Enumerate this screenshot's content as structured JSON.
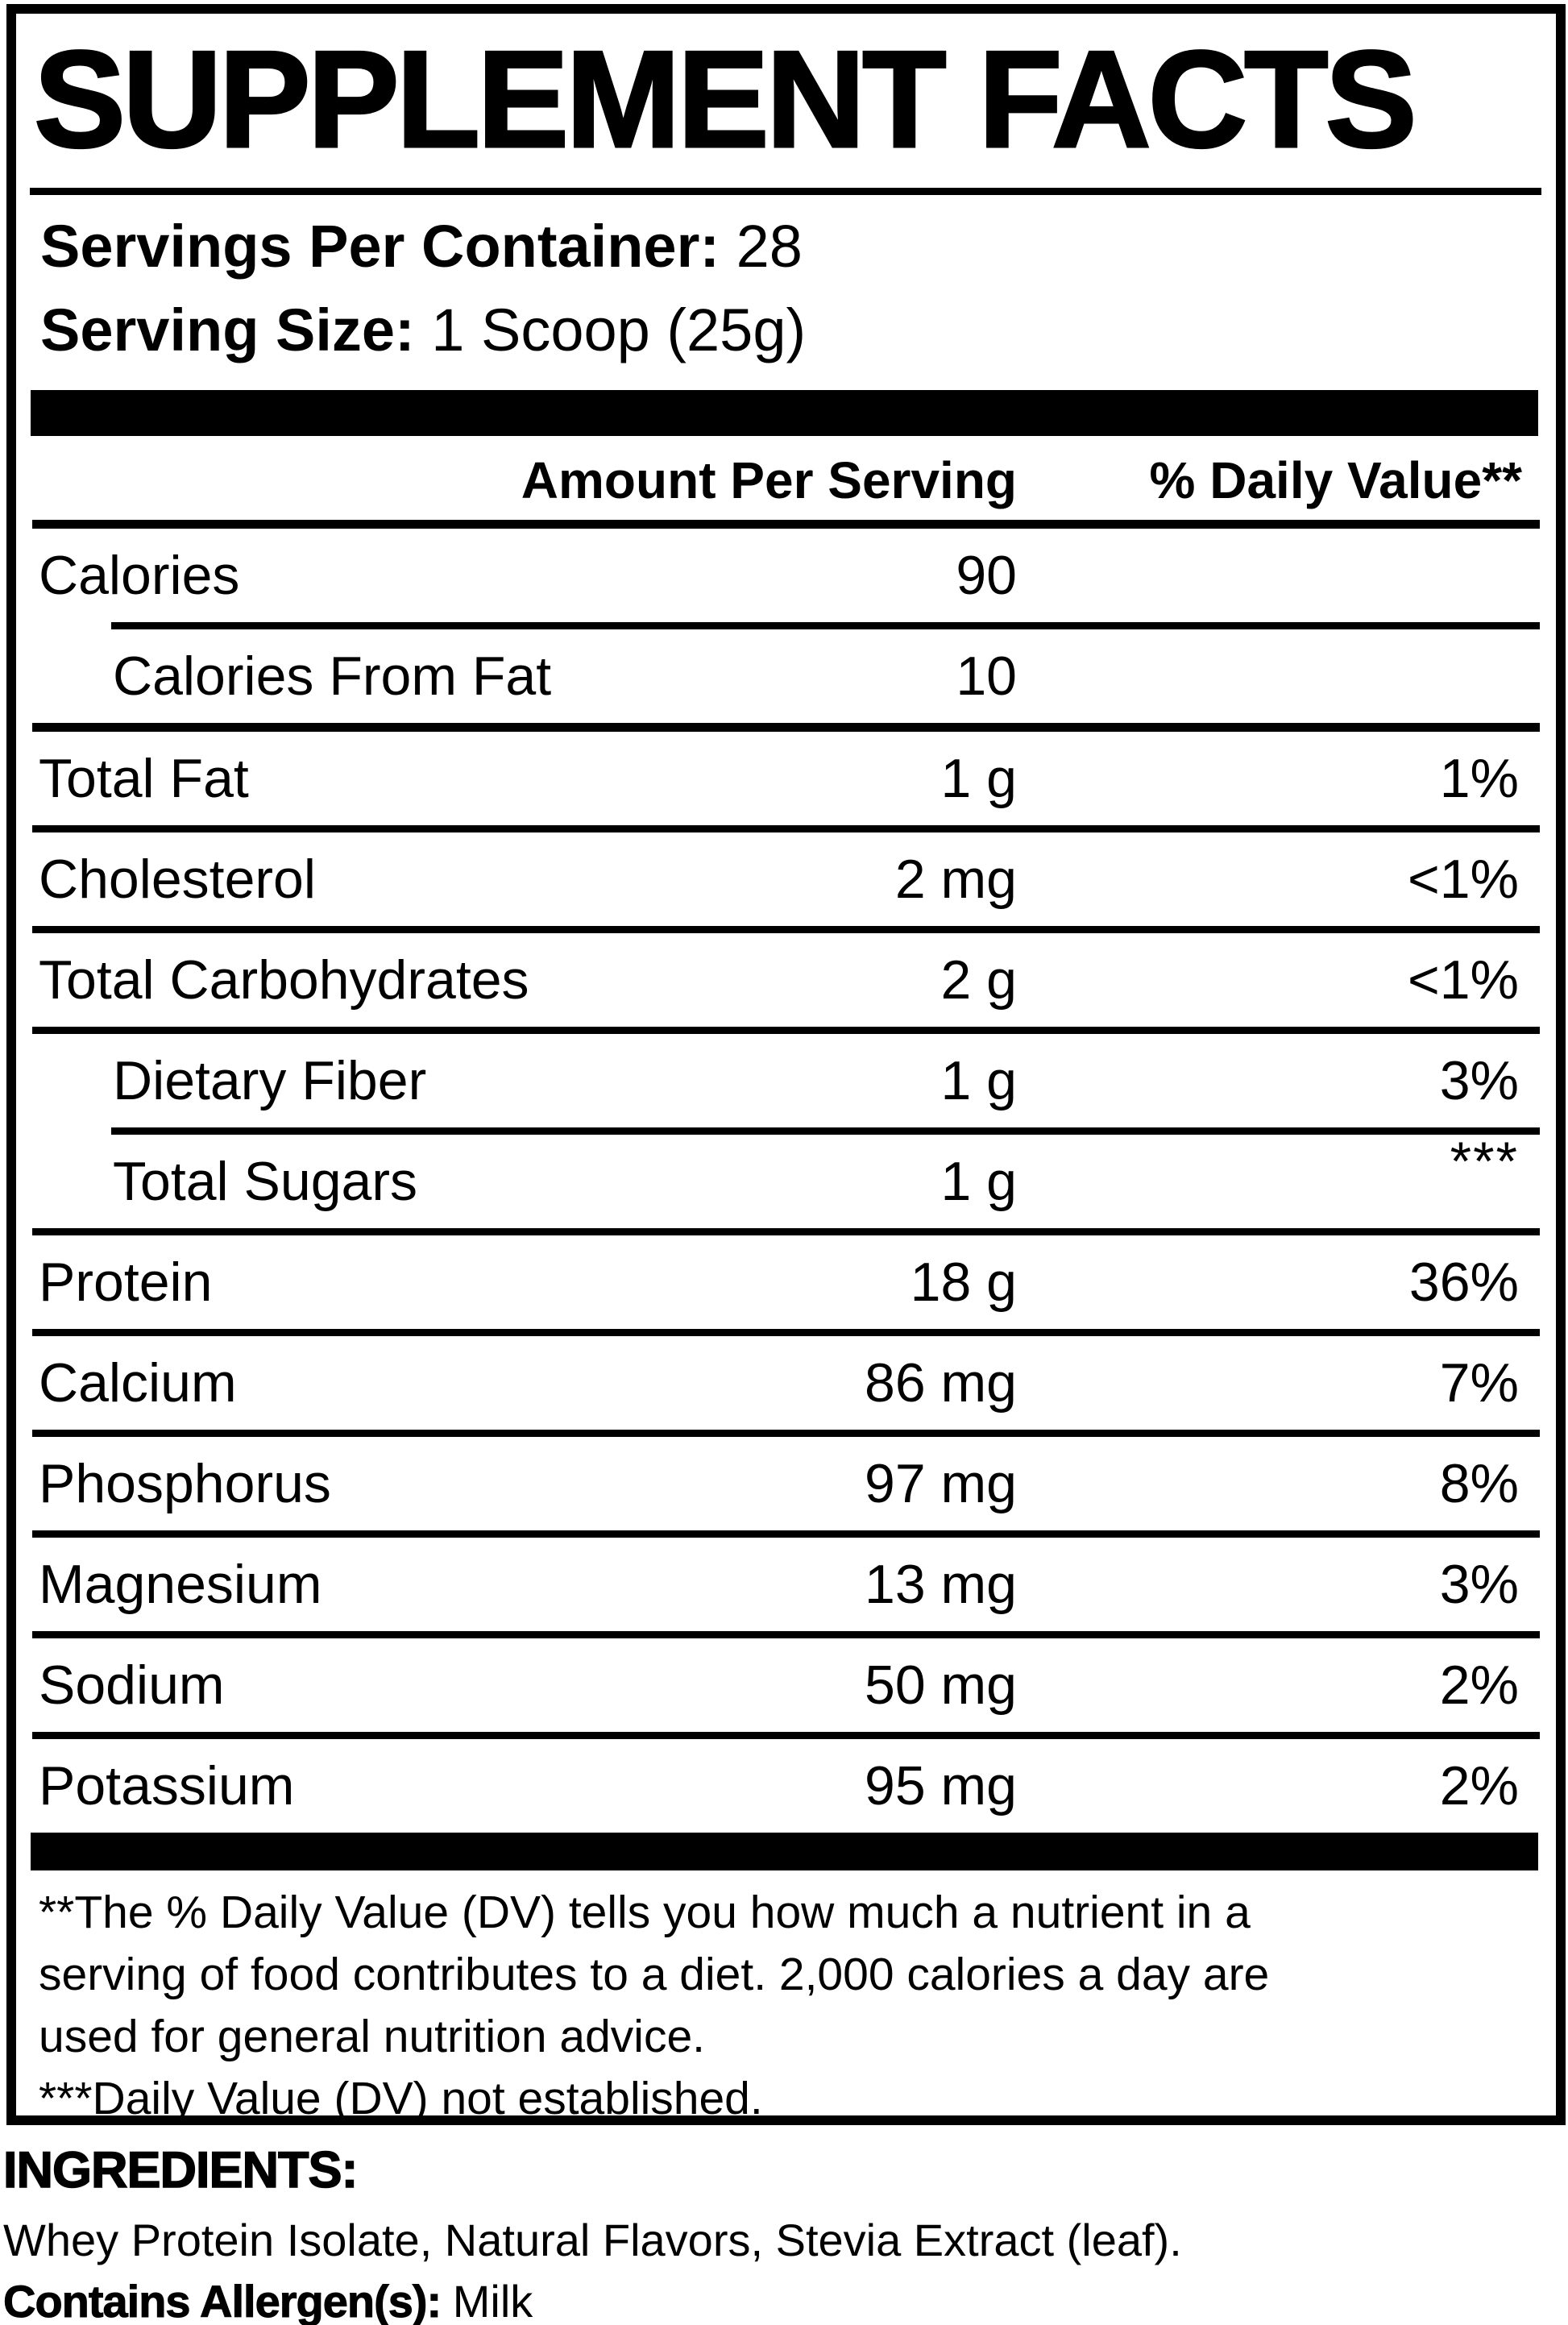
{
  "panel": {
    "title": "SUPPLEMENT FACTS",
    "servings_per_container": {
      "label": "Servings Per Container:",
      "value": "28"
    },
    "serving_size": {
      "label": "Serving Size:",
      "value": "1 Scoop (25g)"
    },
    "columns": {
      "amount": "Amount Per Serving",
      "daily_value": "% Daily Value**"
    },
    "rows": [
      {
        "name": "Calories",
        "amount": "90",
        "dv": ""
      },
      {
        "name": "Calories From Fat",
        "amount": "10",
        "dv": ""
      },
      {
        "name": "Total Fat",
        "amount": "1 g",
        "dv": "1%"
      },
      {
        "name": "Cholesterol",
        "amount": "2 mg",
        "dv": "<1%"
      },
      {
        "name": "Total Carbohydrates",
        "amount": "2 g",
        "dv": "<1%"
      },
      {
        "name": "Dietary Fiber",
        "amount": "1 g",
        "dv": "3%"
      },
      {
        "name": "Total Sugars",
        "amount": "1 g",
        "dv": "***"
      },
      {
        "name": "Protein",
        "amount": "18 g",
        "dv": "36%"
      },
      {
        "name": "Calcium",
        "amount": "86 mg",
        "dv": "7%"
      },
      {
        "name": "Phosphorus",
        "amount": "97 mg",
        "dv": "8%"
      },
      {
        "name": "Magnesium",
        "amount": "13 mg",
        "dv": "3%"
      },
      {
        "name": "Sodium",
        "amount": "50 mg",
        "dv": "2%"
      },
      {
        "name": "Potassium",
        "amount": "95 mg",
        "dv": "2%"
      }
    ],
    "footnote_lines": [
      "**The % Daily Value (DV) tells you how much a nutrient in a",
      "serving of food contributes to a diet. 2,000 calories a day are",
      "used for general nutrition advice.",
      "***Daily Value (DV) not established."
    ]
  },
  "ingredients": {
    "heading": "INGREDIENTS:",
    "list": "Whey Protein Isolate, Natural Flavors, Stevia Extract (leaf).",
    "allergen_label": "Contains Allergen(s):",
    "allergen_value": "Milk"
  },
  "colors": {
    "ink": "#000000",
    "paper": "#ffffff"
  }
}
